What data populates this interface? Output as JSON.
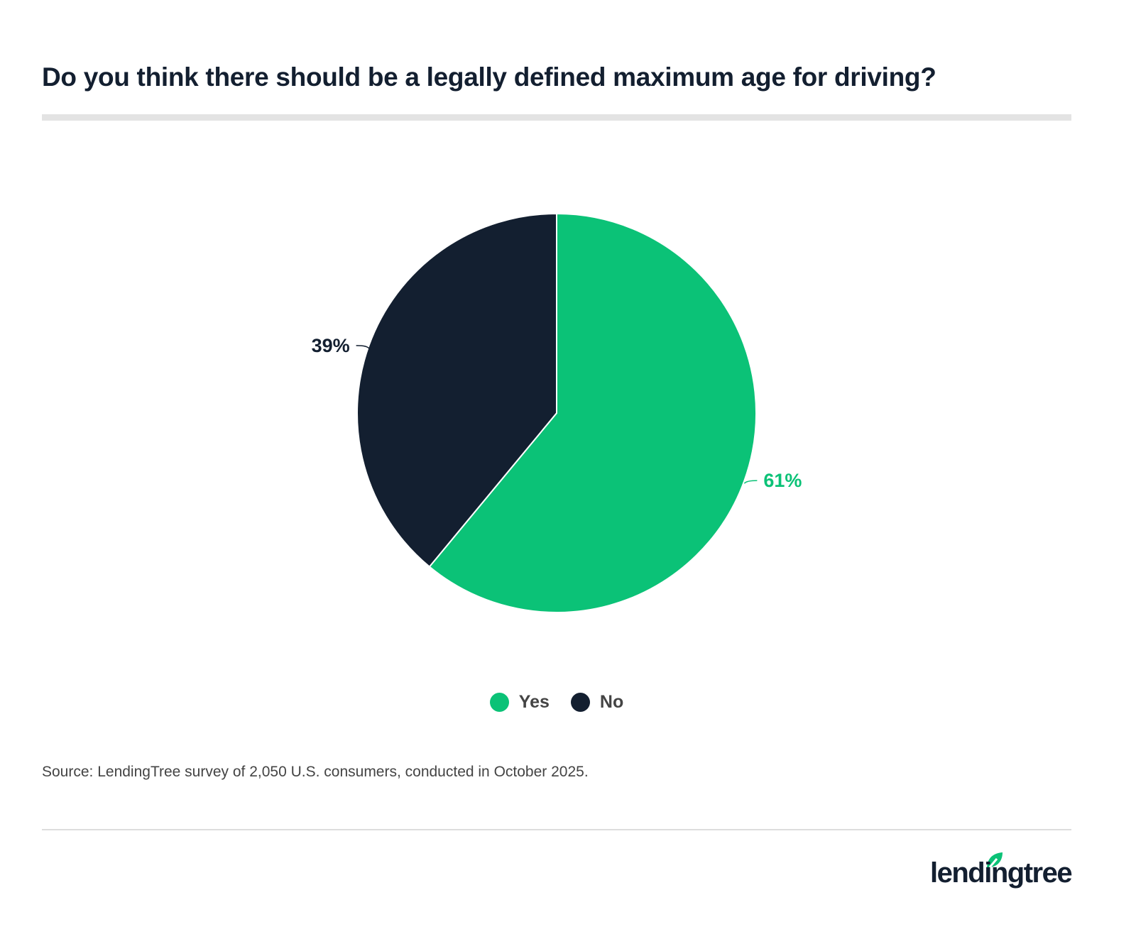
{
  "title": "Do you think there should be a legally defined maximum age for driving?",
  "source": "Source: LendingTree survey of 2,050 U.S. consumers, conducted in October 2025.",
  "logo": "lendingtree",
  "chart_data": {
    "type": "pie",
    "title": "Do you think there should be a legally defined maximum age for driving?",
    "categories": [
      "Yes",
      "No"
    ],
    "values": [
      61,
      39
    ],
    "labels": [
      "61%",
      "39%"
    ],
    "colors": [
      "#0bc277",
      "#131f30"
    ],
    "legend_position": "bottom",
    "start": "top, clockwise"
  }
}
